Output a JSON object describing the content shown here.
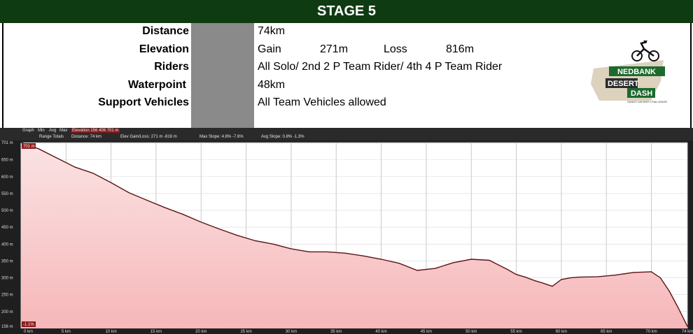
{
  "header": {
    "title": "STAGE 5"
  },
  "info": {
    "rows": [
      {
        "label": "Distance",
        "value": "74km"
      },
      {
        "label": "Elevation",
        "gain_label": "Gain",
        "gain": "271m",
        "loss_label": "Loss",
        "loss": "816m"
      },
      {
        "label": "Riders",
        "value": "All Solo/  2nd 2 P Team Rider/  4th 4 P Team Rider"
      },
      {
        "label": "Waterpoint",
        "value": "48km"
      },
      {
        "label": "Support Vehicles",
        "value": "All Team Vehicles allowed"
      }
    ]
  },
  "logo": {
    "line1": "NEDBANK",
    "line2": "DESERT",
    "line3": "DASH",
    "tagline": "SANDS SAFARIS CHALLENGE"
  },
  "legend": {
    "row1": [
      "Graph",
      "Min",
      "Avg",
      "Max"
    ],
    "row1_highlight": "Elevation  156  406  701 m",
    "row2_label": "Range Totals",
    "row2_items": [
      "Distance: 74 km",
      "Elev Gain/Loss: 271 m  -816 m",
      "Max Slope: 4.6% -7.6%",
      "Avg Slope: 0.8% -1.3%"
    ]
  },
  "chart_data": {
    "type": "area",
    "xlabel": "",
    "ylabel": "",
    "x_unit": "km",
    "y_unit": "m",
    "xlim": [
      0,
      74
    ],
    "ylim": [
      150,
      701
    ],
    "x_ticks": [
      "0 km",
      "5 km",
      "10 km",
      "15 km",
      "20 km",
      "25 km",
      "30 km",
      "35 km",
      "40 km",
      "45 km",
      "50 km",
      "55 km",
      "60 km",
      "65 km",
      "70 km",
      "74 km"
    ],
    "x_tick_values": [
      0,
      5,
      10,
      15,
      20,
      25,
      30,
      35,
      40,
      45,
      50,
      55,
      60,
      65,
      70,
      74
    ],
    "y_ticks": [
      "701 m",
      "650 m",
      "600 m",
      "550 m",
      "500 m",
      "450 m",
      "400 m",
      "350 m",
      "300 m",
      "250 m",
      "200 m",
      "156 m"
    ],
    "y_tick_values": [
      701,
      650,
      600,
      550,
      500,
      450,
      400,
      350,
      300,
      250,
      200,
      156
    ],
    "max_marker": "701 m",
    "slope_marker": "-1.1%",
    "series": [
      {
        "x": [
          0,
          2,
          4,
          6,
          8,
          10,
          12,
          14,
          16,
          18,
          20,
          22,
          24,
          26,
          28,
          30,
          32,
          34,
          36,
          38,
          40,
          42,
          44,
          46,
          48,
          50,
          52,
          54,
          55,
          56,
          57,
          58,
          59,
          60,
          61,
          62,
          64,
          66,
          68,
          70,
          71,
          72,
          73,
          74
        ],
        "y": [
          701,
          682,
          655,
          628,
          610,
          582,
          552,
          530,
          508,
          488,
          465,
          445,
          426,
          410,
          400,
          386,
          377,
          377,
          373,
          365,
          355,
          343,
          322,
          328,
          345,
          355,
          352,
          325,
          310,
          302,
          292,
          284,
          275,
          295,
          300,
          302,
          303,
          308,
          316,
          318,
          300,
          260,
          210,
          156
        ]
      }
    ]
  },
  "colors": {
    "header_bg": "#0f3b12",
    "area_fill": "#f6b7b9",
    "line": "#5a1414",
    "frame": "#1f1f1f"
  }
}
